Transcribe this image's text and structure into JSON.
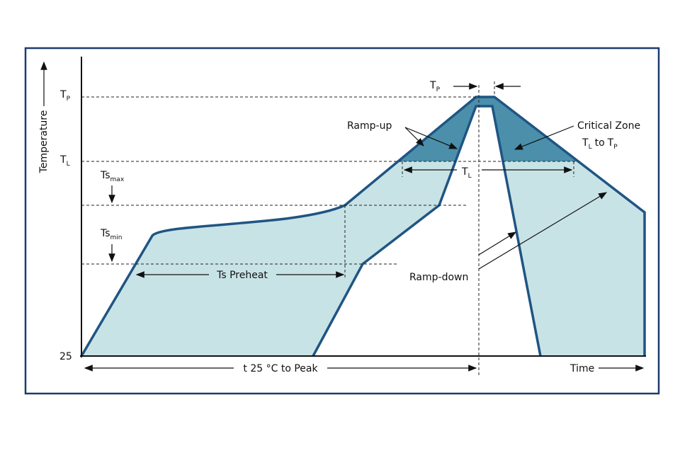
{
  "axis": {
    "y_label": "Temperature",
    "x_label": "Time",
    "origin": "25"
  },
  "levels": {
    "tp": {
      "main": "T",
      "sub": "P"
    },
    "tl": {
      "main": "T",
      "sub": "L"
    },
    "ts_max": {
      "main": "Ts",
      "sub": "max"
    },
    "ts_min": {
      "main": "Ts",
      "sub": "min"
    }
  },
  "annotations": {
    "tp_top": {
      "main": "T",
      "sub": "P"
    },
    "tl_span": {
      "main": "T",
      "sub": "L"
    },
    "preheat": "Ts Preheat",
    "to_peak": "t 25 °C to Peak",
    "ramp_up": "Ramp-up",
    "ramp_down": "Ramp-down",
    "critical_zone": "Critical Zone",
    "critical_range": {
      "from_main": "T",
      "from_sub": "L",
      "to": "to",
      "to_main": "T",
      "to_sub": "P"
    }
  }
}
